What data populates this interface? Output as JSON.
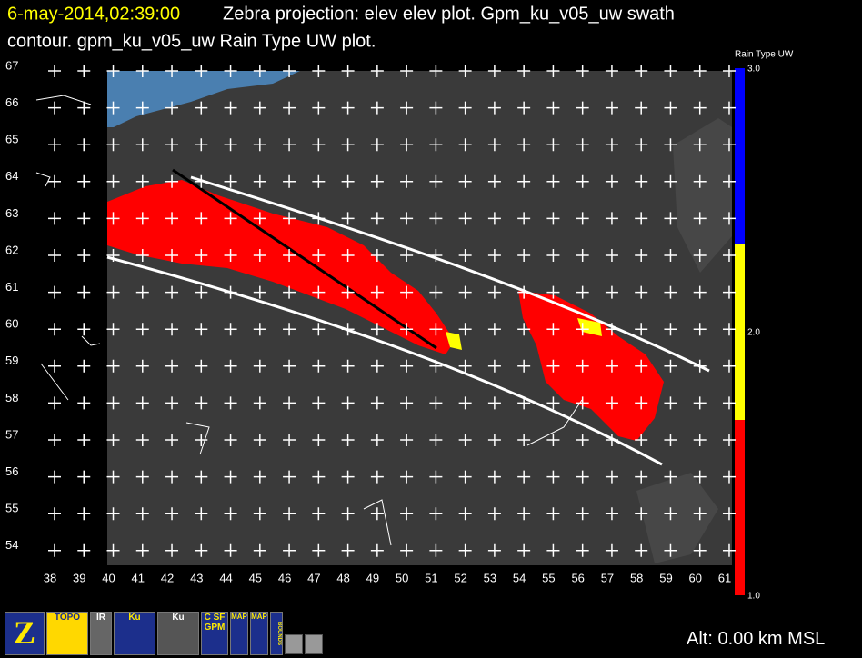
{
  "header": {
    "timestamp": "6-may-2014,02:39:00",
    "line1": "Zebra projection: elev elev  plot.  Gpm_ku_v05_uw swath",
    "line2": "contour.  gpm_ku_v05_uw Rain Type UW  plot."
  },
  "map": {
    "lat_labels": [
      "67",
      "66",
      "65",
      "64",
      "63",
      "62",
      "61",
      "60",
      "59",
      "58",
      "57",
      "56",
      "55",
      "54"
    ],
    "lon_labels": [
      "38",
      "39",
      "40",
      "41",
      "42",
      "43",
      "44",
      "45",
      "46",
      "47",
      "48",
      "49",
      "50",
      "51",
      "52",
      "53",
      "54",
      "55",
      "56",
      "57",
      "58",
      "59",
      "60",
      "61"
    ]
  },
  "colorbar": {
    "title": "Rain Type UW",
    "labels": [
      "3.0",
      "2.0",
      "1.0"
    ]
  },
  "toolbar": {
    "icons": [
      "Z",
      "TOPO",
      "IR",
      "Ku",
      "Ku",
      "C SF GPM",
      "MAP",
      "MAP",
      "BOUNDS"
    ]
  },
  "status": "Alt: 0.00 km MSL"
}
